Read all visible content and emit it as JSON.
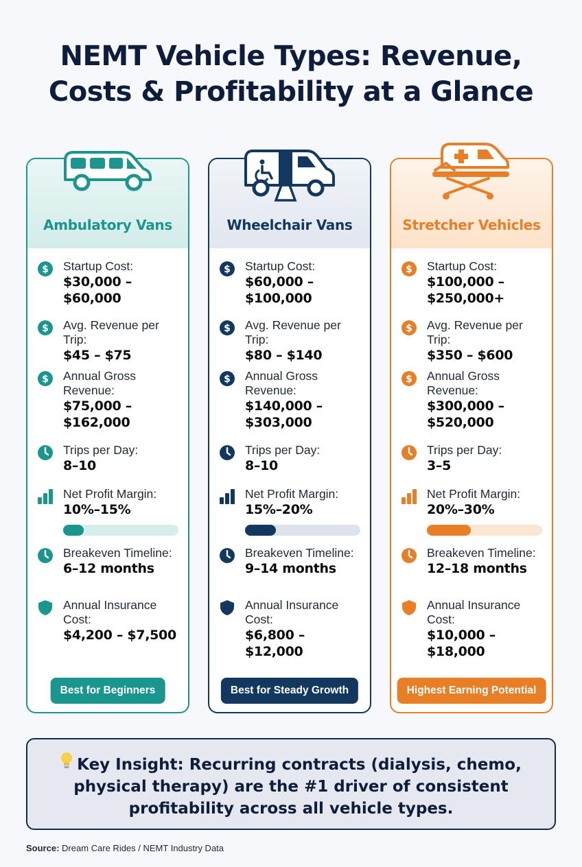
{
  "title": {
    "line1": "NEMT Vehicle Types: Revenue,",
    "line2": "Costs & Profitability at a Glance"
  },
  "colors": {
    "teal": "#1a968f",
    "navy": "#13385f",
    "orange": "#e87f27",
    "title": "#0f1d3d"
  },
  "cards": [
    {
      "name": "Ambulatory Vans",
      "vehicle_icon": "van-icon",
      "startup_label": "Startup Cost:",
      "startup_value_1": "$30,000 –",
      "startup_value_2": "$60,000",
      "revenue_trip_label_1": "Avg. Revenue per",
      "revenue_trip_label_2": "Trip:",
      "revenue_trip_value": "$45 – $75",
      "annual_label_1": "Annual Gross",
      "annual_label_2": "Revenue:",
      "annual_value_1": "$75,000 –",
      "annual_value_2": "$162,000",
      "trips_label": "Trips per Day:",
      "trips_value": "8–10",
      "margin_label": "Net Profit Margin:",
      "margin_value": "10%–15%",
      "margin_fill": 0.18,
      "breakeven_label": "Breakeven Timeline:",
      "breakeven_value": "6–12 months",
      "insurance_label_1": "Annual Insurance",
      "insurance_label_2": "Cost:",
      "insurance_value_1": "$4,200 – $7,500",
      "insurance_value_2": "",
      "badge": "Best for Beginners"
    },
    {
      "name": "Wheelchair Vans",
      "vehicle_icon": "wheelchair-van-icon",
      "startup_label": "Startup Cost:",
      "startup_value_1": "$60,000 –",
      "startup_value_2": "$100,000",
      "revenue_trip_label_1": "Avg. Revenue per",
      "revenue_trip_label_2": "Trip:",
      "revenue_trip_value": "$80 – $140",
      "annual_label_1": "Annual Gross",
      "annual_label_2": "Revenue:",
      "annual_value_1": "$140,000 –",
      "annual_value_2": "$303,000",
      "trips_label": "Trips per Day:",
      "trips_value": "8–10",
      "margin_label": "Net Profit Margin:",
      "margin_value": "15%–20%",
      "margin_fill": 0.27,
      "breakeven_label": "Breakeven Timeline:",
      "breakeven_value": "9–14 months",
      "insurance_label_1": "Annual Insurance",
      "insurance_label_2": "Cost:",
      "insurance_value_1": "$6,800 –",
      "insurance_value_2": "$12,000",
      "badge": "Best for Steady Growth"
    },
    {
      "name": "Stretcher Vehicles",
      "vehicle_icon": "stretcher-icon",
      "startup_label": "Startup Cost:",
      "startup_value_1": "$100,000 –",
      "startup_value_2": "$250,000+",
      "revenue_trip_label_1": "Avg. Revenue per",
      "revenue_trip_label_2": "Trip:",
      "revenue_trip_value": "$350 – $600",
      "annual_label_1": "Annual Gross",
      "annual_label_2": "Revenue:",
      "annual_value_1": "$300,000 –",
      "annual_value_2": "$520,000",
      "trips_label": "Trips per Day:",
      "trips_value": "3–5",
      "margin_label": "Net Profit Margin:",
      "margin_value": "20%–30%",
      "margin_fill": 0.38,
      "breakeven_label": "Breakeven Timeline:",
      "breakeven_value": "12–18 months",
      "insurance_label_1": "Annual Insurance",
      "insurance_label_2": "Cost:",
      "insurance_value_1": "$10,000 –",
      "insurance_value_2": "$18,000",
      "badge": "Highest Earning Potential"
    }
  ],
  "insight": {
    "icon": "lightbulb-icon",
    "line1": "Key Insight: Recurring contracts (dialysis, chemo,",
    "line2": "physical therapy) are the #1 driver of consistent",
    "line3": "profitability across all vehicle types."
  },
  "source": {
    "label": "Source:",
    "text": " Dream Care Rides / NEMT Industry Data"
  }
}
